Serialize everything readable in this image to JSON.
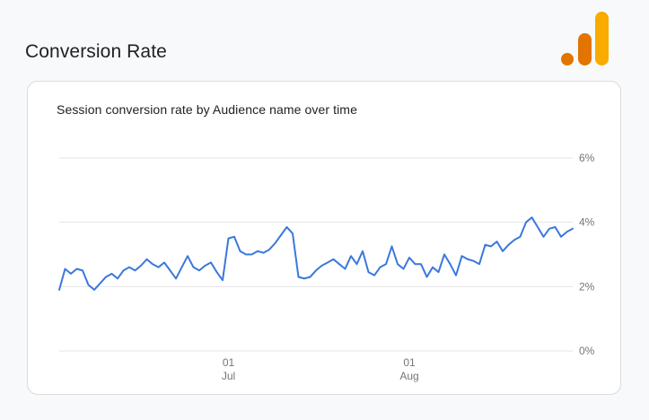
{
  "page": {
    "background": "#f8f9fa"
  },
  "header": {
    "title": "Conversion Rate"
  },
  "logo": {
    "name": "google-analytics-logo",
    "tall_bar_color": "#F9AB00",
    "mid_bar_color": "#E37400",
    "dot_color": "#E37400"
  },
  "card": {
    "subtitle": "Session conversion rate by Audience name over time",
    "border_color": "#dadce0",
    "background": "#ffffff"
  },
  "chart_data": {
    "type": "line",
    "title": "Session conversion rate by Audience name over time",
    "xlabel": "",
    "ylabel": "",
    "ylim": [
      0,
      6
    ],
    "grid": true,
    "y_axis_side": "right",
    "grid_color": "#e6e6ea",
    "axis_label_color": "#757575",
    "y_ticks": [
      {
        "value": 0,
        "label": "0%"
      },
      {
        "value": 2,
        "label": "2%"
      },
      {
        "value": 4,
        "label": "4%"
      },
      {
        "value": 6,
        "label": "6%"
      }
    ],
    "x_ticks": [
      {
        "index": 29,
        "day": "01",
        "month": "Jul"
      },
      {
        "index": 60,
        "day": "01",
        "month": "Aug"
      }
    ],
    "series": [
      {
        "name": "Session conversion rate",
        "color": "#3b78dc",
        "unit": "%",
        "values": [
          1.9,
          2.55,
          2.4,
          2.55,
          2.5,
          2.05,
          1.9,
          2.1,
          2.3,
          2.4,
          2.25,
          2.5,
          2.6,
          2.5,
          2.65,
          2.85,
          2.7,
          2.6,
          2.75,
          2.5,
          2.25,
          2.6,
          2.95,
          2.6,
          2.5,
          2.65,
          2.75,
          2.45,
          2.2,
          3.5,
          3.55,
          3.1,
          3.0,
          3.0,
          3.1,
          3.05,
          3.15,
          3.35,
          3.6,
          3.85,
          3.65,
          2.3,
          2.25,
          2.3,
          2.5,
          2.65,
          2.75,
          2.85,
          2.7,
          2.55,
          2.95,
          2.7,
          3.1,
          2.45,
          2.35,
          2.6,
          2.7,
          3.25,
          2.7,
          2.55,
          2.9,
          2.7,
          2.7,
          2.3,
          2.6,
          2.45,
          3.0,
          2.7,
          2.35,
          2.95,
          2.85,
          2.8,
          2.7,
          3.3,
          3.25,
          3.4,
          3.1,
          3.3,
          3.45,
          3.55,
          4.0,
          4.15,
          3.85,
          3.55,
          3.8,
          3.85,
          3.55,
          3.7,
          3.8
        ]
      }
    ]
  }
}
